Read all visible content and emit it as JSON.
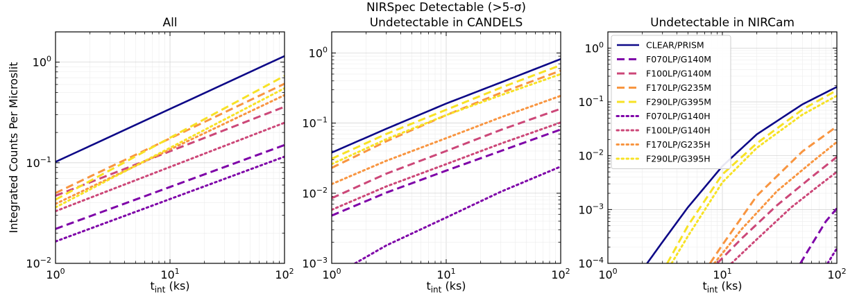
{
  "figure": {
    "ylabel": "Integrated Counts Per Microslit",
    "xlabel_main": "t",
    "xlabel_sub": "int",
    "xlabel_unit": " (ks)"
  },
  "series_styles": [
    {
      "name": "CLEAR/PRISM",
      "color": "#0d0887",
      "dash": "solid"
    },
    {
      "name": "F070LP/G140M",
      "color": "#7e03a8",
      "dash": "dashed"
    },
    {
      "name": "F100LP/G140M",
      "color": "#cc4778",
      "dash": "dashed"
    },
    {
      "name": "F170LP/G235M",
      "color": "#f89540",
      "dash": "dashed"
    },
    {
      "name": "F290LP/G395M",
      "color": "#f7e225",
      "dash": "dashed"
    },
    {
      "name": "F070LP/G140H",
      "color": "#7e03a8",
      "dash": "dotted"
    },
    {
      "name": "F100LP/G140H",
      "color": "#cc4778",
      "dash": "dotted"
    },
    {
      "name": "F170LP/G235H",
      "color": "#f89540",
      "dash": "dotted"
    },
    {
      "name": "F290LP/G395H",
      "color": "#f7e225",
      "dash": "dotted"
    }
  ],
  "chart_data": [
    {
      "type": "line",
      "title": [
        "All"
      ],
      "xlabel": "t_int (ks)",
      "ylabel": "Integrated Counts Per Microslit",
      "xscale": "log",
      "yscale": "log",
      "xlim": [
        1,
        100
      ],
      "ylim": [
        0.01,
        2
      ],
      "x_ticks": [
        {
          "base": "10",
          "exp": "0",
          "v": 1
        },
        {
          "base": "10",
          "exp": "1",
          "v": 10
        },
        {
          "base": "10",
          "exp": "2",
          "v": 100
        }
      ],
      "y_ticks": [
        {
          "base": "10",
          "exp": "−2",
          "v": 0.01
        },
        {
          "base": "10",
          "exp": "−1",
          "v": 0.1
        },
        {
          "base": "10",
          "exp": "0",
          "v": 1
        }
      ],
      "legend": false,
      "grid": true,
      "series": [
        {
          "style": 0,
          "x": [
            1,
            100
          ],
          "y": [
            0.102,
            1.15
          ]
        },
        {
          "style": 1,
          "x": [
            1,
            100
          ],
          "y": [
            0.022,
            0.15
          ]
        },
        {
          "style": 2,
          "x": [
            1,
            100
          ],
          "y": [
            0.047,
            0.36
          ]
        },
        {
          "style": 3,
          "x": [
            1,
            100
          ],
          "y": [
            0.05,
            0.61
          ]
        },
        {
          "style": 4,
          "x": [
            1,
            100
          ],
          "y": [
            0.043,
            0.73
          ]
        },
        {
          "style": 5,
          "x": [
            1,
            100
          ],
          "y": [
            0.0165,
            0.115
          ]
        },
        {
          "style": 6,
          "x": [
            1,
            100
          ],
          "y": [
            0.033,
            0.25
          ]
        },
        {
          "style": 7,
          "x": [
            1,
            100
          ],
          "y": [
            0.039,
            0.47
          ]
        },
        {
          "style": 8,
          "x": [
            1,
            100
          ],
          "y": [
            0.036,
            0.55
          ]
        }
      ]
    },
    {
      "type": "line",
      "title": [
        "NIRSpec Detectable (>5-σ)",
        "Undetectable in CANDELS"
      ],
      "xlabel": "t_int (ks)",
      "xscale": "log",
      "yscale": "log",
      "xlim": [
        1,
        100
      ],
      "ylim": [
        0.001,
        2
      ],
      "x_ticks": [
        {
          "base": "10",
          "exp": "0",
          "v": 1
        },
        {
          "base": "10",
          "exp": "1",
          "v": 10
        },
        {
          "base": "10",
          "exp": "2",
          "v": 100
        }
      ],
      "y_ticks": [
        {
          "base": "10",
          "exp": "−3",
          "v": 0.001
        },
        {
          "base": "10",
          "exp": "−2",
          "v": 0.01
        },
        {
          "base": "10",
          "exp": "−1",
          "v": 0.1
        },
        {
          "base": "10",
          "exp": "0",
          "v": 1
        }
      ],
      "legend": false,
      "grid": true,
      "series": [
        {
          "style": 0,
          "x": [
            1,
            3,
            10,
            30,
            100
          ],
          "y": [
            0.038,
            0.083,
            0.19,
            0.38,
            0.82
          ]
        },
        {
          "style": 1,
          "x": [
            1,
            3,
            10,
            30,
            100
          ],
          "y": [
            0.0048,
            0.0102,
            0.021,
            0.04,
            0.081
          ]
        },
        {
          "style": 2,
          "x": [
            1,
            3,
            10,
            30,
            100
          ],
          "y": [
            0.0085,
            0.019,
            0.04,
            0.08,
            0.16
          ]
        },
        {
          "style": 3,
          "x": [
            1,
            3,
            10,
            30,
            100
          ],
          "y": [
            0.023,
            0.055,
            0.13,
            0.27,
            0.56
          ]
        },
        {
          "style": 4,
          "x": [
            1,
            3,
            10,
            30,
            100
          ],
          "y": [
            0.031,
            0.07,
            0.155,
            0.32,
            0.67
          ]
        },
        {
          "style": 5,
          "x": [
            1.6,
            3,
            10,
            30,
            100
          ],
          "y": [
            0.001,
            0.0018,
            0.0045,
            0.0105,
            0.024
          ]
        },
        {
          "style": 6,
          "x": [
            1,
            3,
            10,
            30,
            100
          ],
          "y": [
            0.0058,
            0.0125,
            0.026,
            0.051,
            0.102
          ]
        },
        {
          "style": 7,
          "x": [
            1,
            3,
            10,
            30,
            100
          ],
          "y": [
            0.0135,
            0.029,
            0.061,
            0.121,
            0.245
          ]
        },
        {
          "style": 8,
          "x": [
            1,
            3,
            10,
            30,
            100
          ],
          "y": [
            0.026,
            0.059,
            0.13,
            0.25,
            0.5
          ]
        }
      ]
    },
    {
      "type": "line",
      "title": [
        "Undetectable in NIRCam"
      ],
      "xlabel": "t_int (ks)",
      "xscale": "log",
      "yscale": "log",
      "xlim": [
        1,
        100
      ],
      "ylim": [
        0.0001,
        2
      ],
      "x_ticks": [
        {
          "base": "10",
          "exp": "0",
          "v": 1
        },
        {
          "base": "10",
          "exp": "1",
          "v": 10
        },
        {
          "base": "10",
          "exp": "2",
          "v": 100
        }
      ],
      "y_ticks": [
        {
          "base": "10",
          "exp": "−4",
          "v": 0.0001
        },
        {
          "base": "10",
          "exp": "−3",
          "v": 0.001
        },
        {
          "base": "10",
          "exp": "−2",
          "v": 0.01
        },
        {
          "base": "10",
          "exp": "−1",
          "v": 0.1
        },
        {
          "base": "10",
          "exp": "0",
          "v": 1
        }
      ],
      "legend": true,
      "legend_loc": "upper left",
      "grid": true,
      "series": [
        {
          "style": 0,
          "x": [
            2.2,
            3,
            5,
            10,
            20,
            50,
            100
          ],
          "y": [
            0.0001,
            0.00025,
            0.0011,
            0.0064,
            0.025,
            0.09,
            0.19
          ]
        },
        {
          "style": 1,
          "x": [
            48,
            60,
            80,
            100
          ],
          "y": [
            0.0001,
            0.00022,
            0.0006,
            0.00105
          ]
        },
        {
          "style": 2,
          "x": [
            9,
            15,
            30,
            60,
            100
          ],
          "y": [
            0.0001,
            0.0003,
            0.0012,
            0.004,
            0.0095
          ]
        },
        {
          "style": 3,
          "x": [
            7.8,
            10,
            20,
            50,
            100
          ],
          "y": [
            0.0001,
            0.00022,
            0.0018,
            0.012,
            0.035
          ]
        },
        {
          "style": 4,
          "x": [
            3.3,
            5,
            10,
            20,
            50,
            100
          ],
          "y": [
            0.0001,
            0.0005,
            0.0045,
            0.017,
            0.072,
            0.165
          ]
        },
        {
          "style": 5,
          "x": [
            83,
            100
          ],
          "y": [
            0.0001,
            0.00019
          ]
        },
        {
          "style": 6,
          "x": [
            12,
            20,
            40,
            70,
            100
          ],
          "y": [
            0.0001,
            0.00028,
            0.0011,
            0.0028,
            0.005
          ]
        },
        {
          "style": 7,
          "x": [
            8.5,
            15,
            30,
            60,
            100
          ],
          "y": [
            0.0001,
            0.00045,
            0.0022,
            0.0075,
            0.018
          ]
        },
        {
          "style": 8,
          "x": [
            3.6,
            5,
            10,
            20,
            50,
            100
          ],
          "y": [
            0.0001,
            0.00032,
            0.0032,
            0.014,
            0.058,
            0.13
          ]
        }
      ]
    }
  ]
}
